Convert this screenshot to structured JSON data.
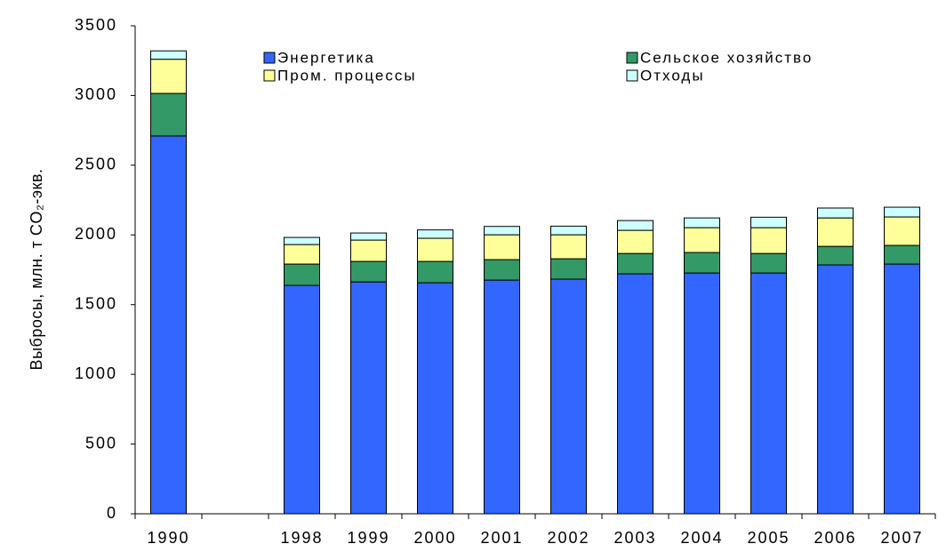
{
  "chart_data": {
    "type": "stacked_bar",
    "y_label": "Выбросы, млн. т CO₂-экв.",
    "categories": [
      "1990",
      null,
      "1998",
      "1999",
      "2000",
      "2001",
      "2002",
      "2003",
      "2004",
      "2005",
      "2006",
      "2007"
    ],
    "series": [
      {
        "name": "Энергетика",
        "color": "#3366ff",
        "values": [
          2710,
          null,
          1638,
          1663,
          1657,
          1676,
          1683,
          1721,
          1727,
          1727,
          1785,
          1791
        ]
      },
      {
        "name": "Сельское хозяйство",
        "color": "#339966",
        "values": [
          305,
          null,
          153,
          147,
          153,
          147,
          146,
          146,
          147,
          140,
          133,
          134
        ]
      },
      {
        "name": "Пром. процессы",
        "color": "#ffff99",
        "values": [
          245,
          null,
          140,
          153,
          166,
          178,
          172,
          166,
          178,
          185,
          204,
          204
        ]
      },
      {
        "name": "Отходы",
        "color": "#ccffff",
        "values": [
          60,
          null,
          51,
          51,
          60,
          60,
          62,
          70,
          70,
          75,
          71,
          70
        ]
      }
    ],
    "ylim": [
      0,
      3500
    ],
    "yticks": [
      0,
      500,
      1000,
      1500,
      2000,
      2500,
      3000,
      3500
    ],
    "grid": false,
    "legend": "top"
  }
}
